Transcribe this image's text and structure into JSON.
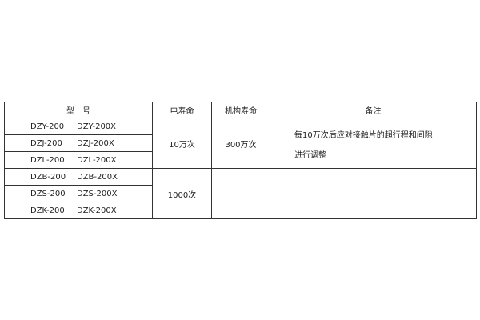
{
  "headers": [
    "型　号",
    "电寿命",
    "机构寿命",
    "备注"
  ],
  "rows": [
    {
      "model": "DZY-200",
      "model_x": "DZY-200X"
    },
    {
      "model": "DZJ-200",
      "model_x": "DZJ-200X"
    },
    {
      "model": "DZL-200",
      "model_x": "DZL-200X"
    },
    {
      "model": "DZB-200",
      "model_x": "DZB-200X"
    },
    {
      "model": "DZS-200",
      "model_x": "DZS-200X"
    },
    {
      "model": "DZK-200",
      "model_x": "DZK-200X"
    }
  ],
  "groups": [
    {
      "electrical_life": "10万次",
      "mechanical_life": "300万次",
      "note_line1": "每10万次后应对接触片的超行程和间隙",
      "note_line2": "进行调整"
    },
    {
      "electrical_life": "1000次",
      "mechanical_life": "",
      "note_line1": "",
      "note_line2": ""
    }
  ]
}
